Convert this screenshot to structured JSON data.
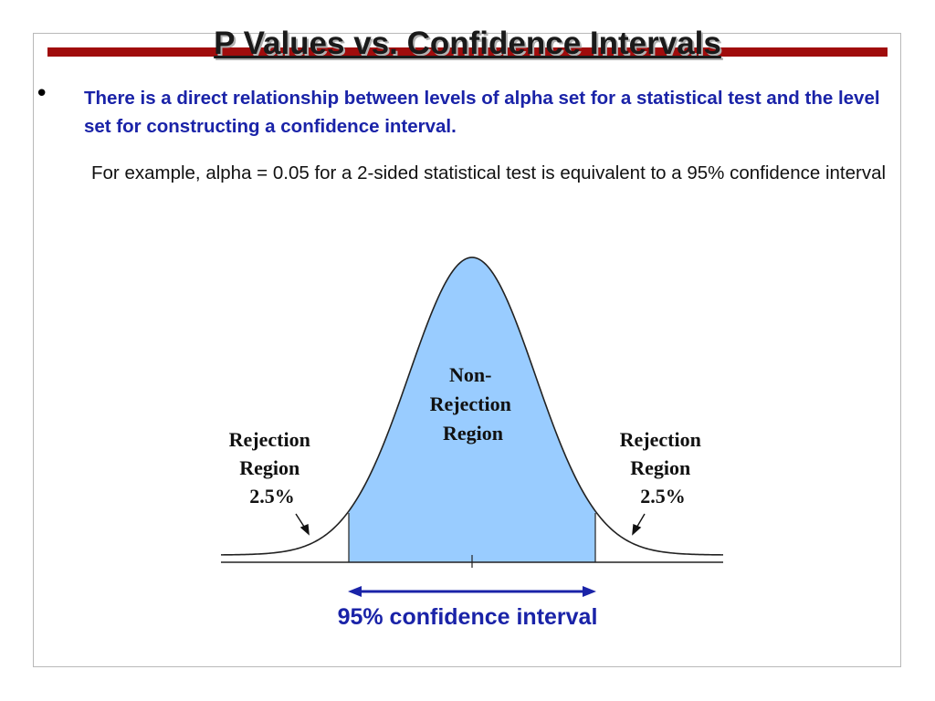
{
  "slide": {
    "title": "P Values vs. Confidence Intervals",
    "bullet_glyph": "•",
    "bullet_text": "There is a direct relationship between levels of alpha set for a statistical test and the level set for constructing a confidence interval.",
    "example_text": "For example, alpha = 0.05 for a 2-sided statistical test is equivalent to a 95% confidence interval"
  },
  "diagram": {
    "non_rejection": [
      "Non-",
      "Rejection",
      "Region"
    ],
    "rejection_left": [
      "Rejection",
      "Region",
      "2.5%"
    ],
    "rejection_right": [
      "Rejection",
      "Region",
      "2.5%"
    ],
    "ci_label": "95% confidence interval",
    "colors": {
      "fill": "#99ccff",
      "title_bar": "#a00c0c",
      "text_blue": "#1a23a8",
      "arrow": "#1a23a8"
    }
  }
}
